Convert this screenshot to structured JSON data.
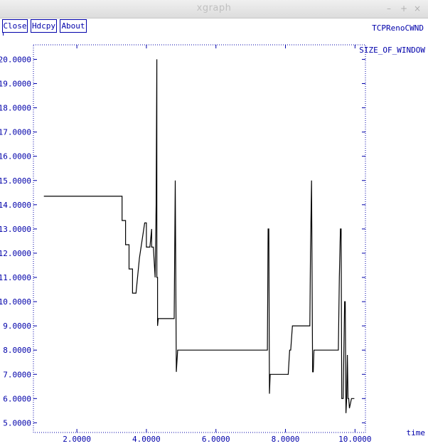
{
  "window": {
    "title": "xgraph",
    "controls": {
      "minimize": "–",
      "maximize": "+",
      "close": "×"
    }
  },
  "toolbar": {
    "close_label": "Close",
    "hardcopy_label": "Hdcpy",
    "about_label": "About"
  },
  "colors": {
    "axis": "#0000aa",
    "series": "#000000",
    "background": "#ffffff"
  },
  "chart_data": {
    "type": "line",
    "title": "TCPRenoCWND",
    "ylabel": "SIZE_OF_WINDOW",
    "xlabel": "time",
    "xlim": [
      0.75,
      10.3
    ],
    "ylim": [
      4.6,
      20.6
    ],
    "grid": false,
    "x_ticks": [
      2,
      4,
      6,
      8,
      10
    ],
    "x_tick_labels": [
      "2.0000",
      "4.0000",
      "6.0000",
      "8.0000",
      "10.0000"
    ],
    "y_ticks": [
      5,
      6,
      7,
      8,
      9,
      10,
      11,
      12,
      13,
      14,
      15,
      16,
      17,
      18,
      19,
      20
    ],
    "y_tick_labels": [
      "5.0000",
      "6.0000",
      "7.0000",
      "8.0000",
      "9.0000",
      "10.0000",
      "11.0000",
      "12.0000",
      "13.0000",
      "14.0000",
      "15.0000",
      "16.0000",
      "17.0000",
      "18.0000",
      "19.0000",
      "20.0000"
    ],
    "series": [
      {
        "x": [
          1.05,
          3.3,
          3.3,
          3.4,
          3.4,
          3.5,
          3.5,
          3.6,
          3.6,
          3.7,
          3.7,
          3.8,
          3.95,
          4.0,
          4.0,
          4.1,
          4.15,
          4.15,
          4.2,
          4.25,
          4.28,
          4.3,
          4.3,
          4.32,
          4.32,
          4.34,
          4.34,
          4.8,
          4.83,
          4.83,
          4.86,
          4.86,
          4.9,
          4.92,
          7.48,
          7.5,
          7.52,
          7.54,
          7.56,
          7.58,
          8.08,
          8.12,
          8.15,
          8.2,
          8.22,
          8.7,
          8.72,
          8.75,
          8.78,
          8.8,
          8.82,
          8.85,
          9.52,
          9.55,
          9.58,
          9.6,
          9.62,
          9.64,
          9.66,
          9.7,
          9.72,
          9.74,
          9.76,
          9.78,
          9.8,
          9.82,
          9.84,
          9.9,
          9.98
        ],
        "y": [
          14.35,
          14.35,
          13.35,
          13.35,
          12.35,
          12.35,
          11.35,
          11.35,
          10.35,
          10.35,
          10.35,
          11.8,
          13.25,
          13.25,
          12.25,
          12.25,
          13.0,
          12.25,
          12.25,
          11.0,
          14.0,
          20.0,
          11.0,
          11.0,
          9.0,
          9.3,
          9.3,
          9.3,
          15.0,
          15.0,
          7.1,
          7.1,
          8.0,
          8.0,
          8.0,
          13.0,
          13.0,
          6.2,
          7.0,
          7.0,
          7.0,
          8.0,
          8.0,
          9.0,
          9.0,
          9.0,
          12.0,
          15.0,
          7.1,
          7.1,
          8.0,
          8.0,
          8.0,
          11.0,
          13.0,
          13.0,
          6.0,
          6.0,
          6.0,
          10.0,
          10.0,
          5.4,
          6.0,
          7.8,
          6.0,
          6.0,
          5.6,
          6.0,
          6.0
        ]
      }
    ]
  }
}
